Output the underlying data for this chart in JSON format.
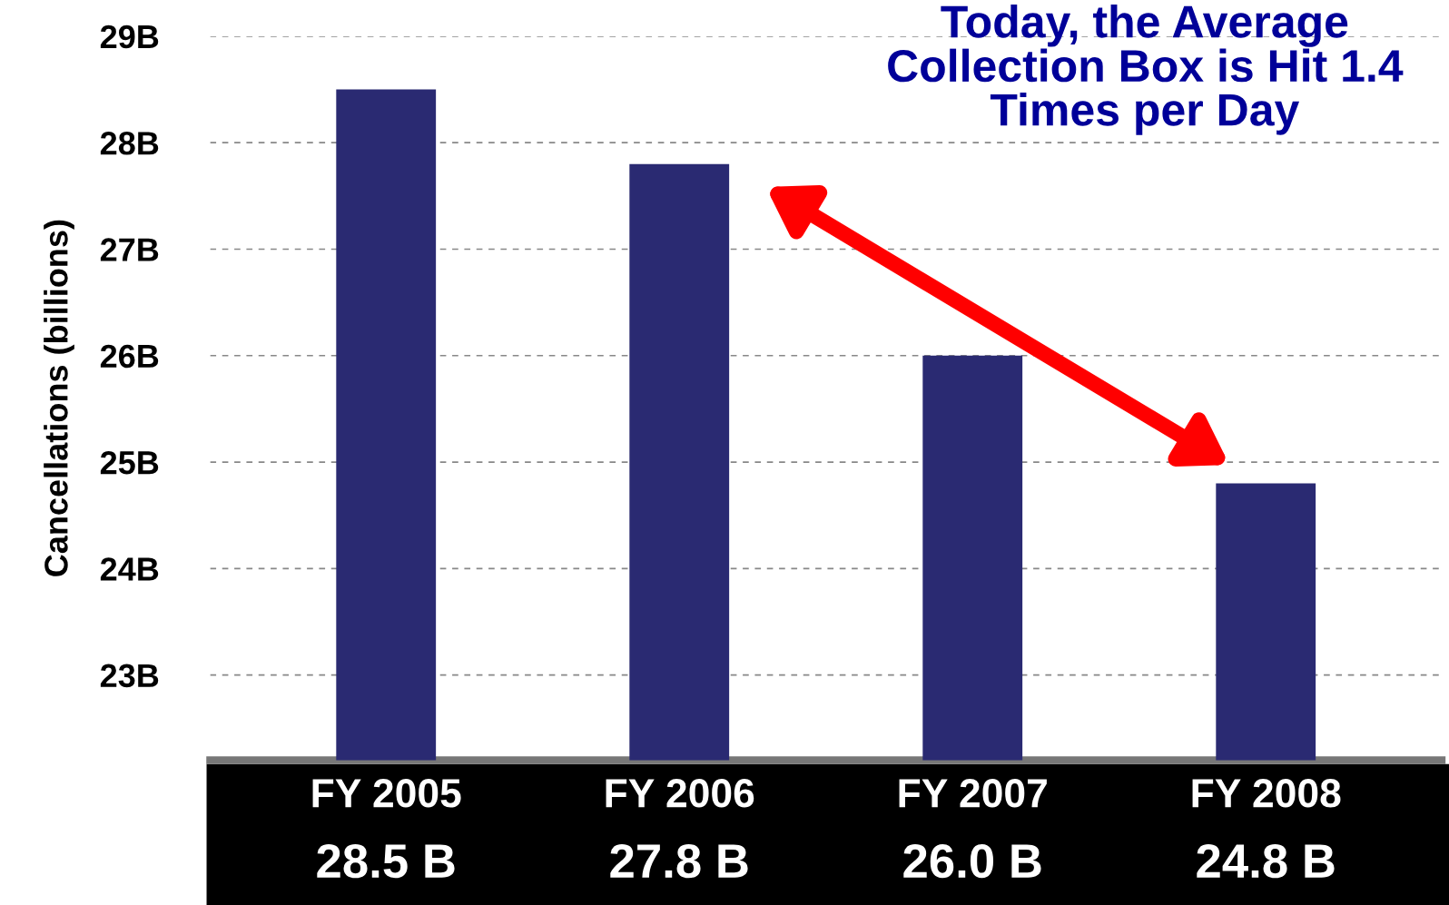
{
  "chart_data": {
    "type": "bar",
    "title": "Today, the Average Collection Box is Hit 1.4 Times per Day",
    "ylabel": "Cancellations (billions)",
    "categories": [
      "FY 2005",
      "FY 2006",
      "FY 2007",
      "FY 2008"
    ],
    "values": [
      28.5,
      27.8,
      26.0,
      24.8
    ],
    "value_labels": [
      "28.5 B",
      "27.8 B",
      "26.0 B",
      "24.8 B"
    ],
    "color": "#2a2a72",
    "ylim": [
      22.2,
      29
    ],
    "yticks": [
      {
        "value": 23,
        "label": "23B"
      },
      {
        "value": 24,
        "label": "24B"
      },
      {
        "value": 25,
        "label": "25B"
      },
      {
        "value": 26,
        "label": "26B"
      },
      {
        "value": 27,
        "label": "27B"
      },
      {
        "value": 28,
        "label": "28B"
      },
      {
        "value": 29,
        "label": "29B"
      }
    ],
    "grid": "y"
  }
}
